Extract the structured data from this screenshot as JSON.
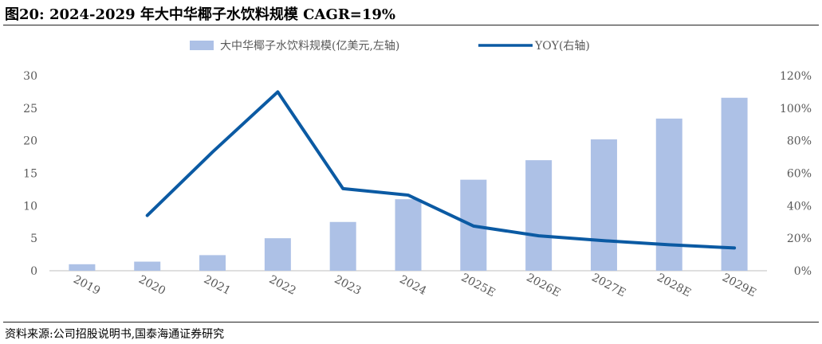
{
  "figure": {
    "title": "图20:  2024-2029 年大中华椰子水饮料规模 CAGR=19%",
    "source": "资料来源:公司招股说明书,国泰海通证券研究"
  },
  "colors": {
    "bar": "#adc1e6",
    "line": "#0b5aa3",
    "axis": "#bfbfbf",
    "text": "#595959"
  },
  "chart_data": {
    "type": "bar",
    "categories": [
      "2019",
      "2020",
      "2021",
      "2022",
      "2023",
      "2024",
      "2025E",
      "2026E",
      "2027E",
      "2028E",
      "2029E"
    ],
    "series": [
      {
        "name": "大中华椰子水饮料规模(亿美元,左轴)",
        "type": "bar",
        "axis": "left",
        "values": [
          1.0,
          1.4,
          2.4,
          5.0,
          7.5,
          11.0,
          14.0,
          17.0,
          20.2,
          23.4,
          26.6
        ]
      },
      {
        "name": "YOY(右轴)",
        "type": "line",
        "axis": "right",
        "values": [
          null,
          34,
          73,
          110,
          50.5,
          46.5,
          27.5,
          21.5,
          18.5,
          16,
          14
        ]
      }
    ],
    "y_left": {
      "min": 0,
      "max": 30,
      "ticks": [
        "0",
        "5",
        "10",
        "15",
        "20",
        "25",
        "30"
      ]
    },
    "y_right": {
      "min": 0,
      "max": 120,
      "ticks": [
        "0%",
        "20%",
        "40%",
        "60%",
        "80%",
        "100%",
        "120%"
      ]
    },
    "legend_position": "top-center",
    "grid": false
  }
}
